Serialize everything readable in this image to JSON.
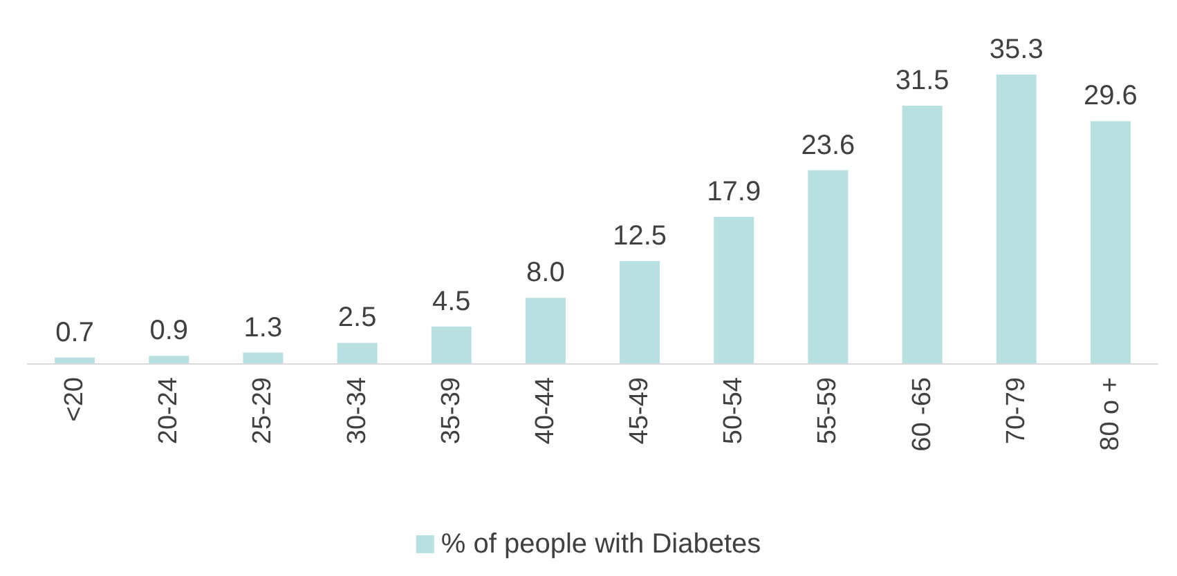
{
  "chart_data": {
    "type": "bar",
    "categories": [
      "<20",
      "20-24",
      "25-29",
      "30-34",
      "35-39",
      "40-44",
      "45-49",
      "50-54",
      "55-59",
      "60 -65",
      "70-79",
      "80 o +"
    ],
    "series": [
      {
        "name": "% of people with Diabetes",
        "color": "#b9e0e1",
        "values": [
          0.7,
          0.9,
          1.3,
          2.5,
          4.5,
          8.0,
          12.5,
          17.9,
          23.6,
          31.5,
          35.3,
          29.6
        ],
        "value_labels": [
          "0.7",
          "0.9",
          "1.3",
          "2.5",
          "4.5",
          "8.0",
          "12.5",
          "17.9",
          "23.6",
          "31.5",
          "35.3",
          "29.6"
        ]
      }
    ],
    "legend": "bottom"
  }
}
